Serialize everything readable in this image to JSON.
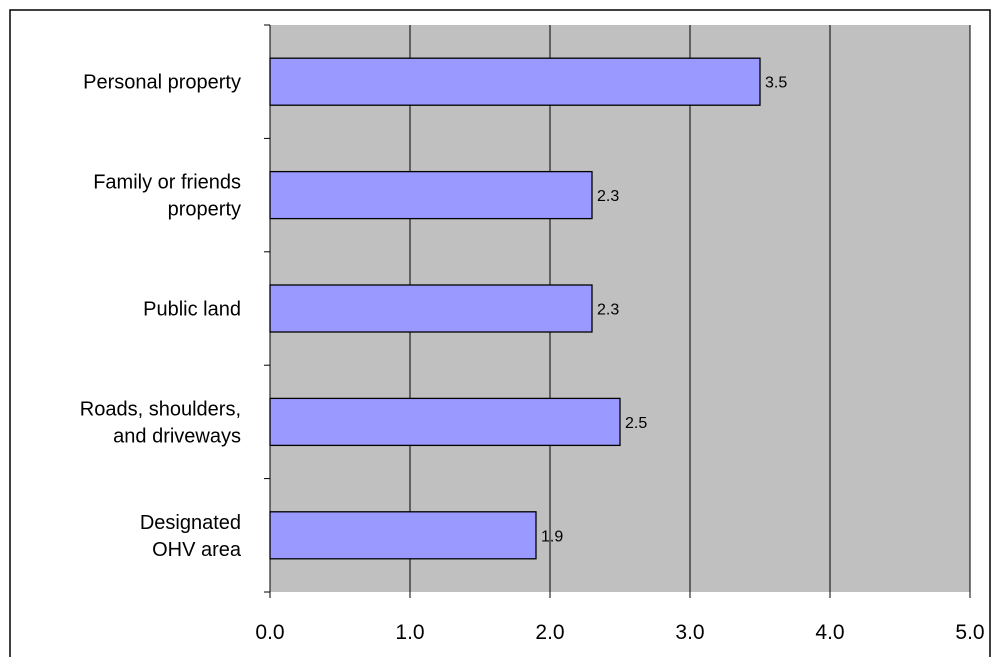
{
  "chart_data": {
    "type": "bar",
    "orientation": "horizontal",
    "categories": [
      [
        "Personal property"
      ],
      [
        "Family or friends",
        "property"
      ],
      [
        "Public land"
      ],
      [
        "Roads, shoulders,",
        "and driveways"
      ],
      [
        "Designated",
        "OHV area"
      ]
    ],
    "values": [
      3.5,
      2.3,
      2.3,
      2.5,
      1.9
    ],
    "data_labels": [
      "3.5",
      "2.3",
      "2.3",
      "2.5",
      "1.9"
    ],
    "x_ticks": [
      "0.0",
      "1.0",
      "2.0",
      "3.0",
      "4.0",
      "5.0"
    ],
    "xlim": [
      0,
      5
    ],
    "grid": "vertical",
    "legend": "none",
    "colors": {
      "bar_fill": "#9999ff",
      "bar_stroke": "#000000",
      "plot_background": "#c0c0c0",
      "gridline": "#000000",
      "frame": "#000000"
    }
  }
}
